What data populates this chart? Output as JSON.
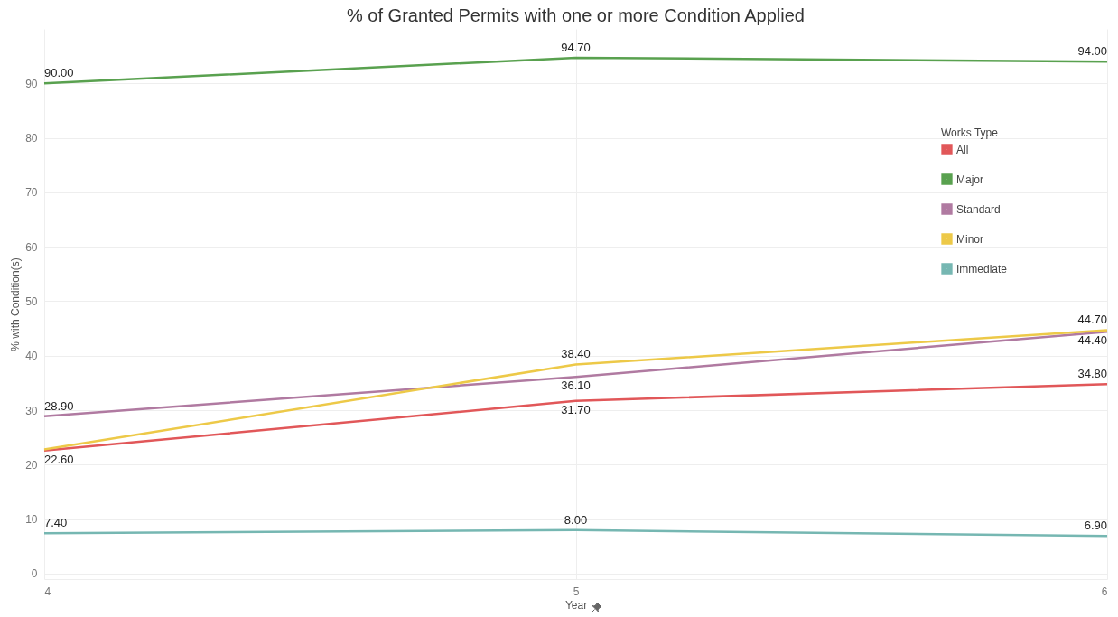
{
  "chart_data": {
    "type": "line",
    "title": "% of Granted Permits with one or more Condition Applied",
    "xlabel": "Year",
    "ylabel": "% with Condition(s)",
    "legend_title": "Works Type",
    "x": [
      4,
      5,
      6
    ],
    "xlim": [
      4,
      6
    ],
    "xticks": [
      4,
      5,
      6
    ],
    "ylim": [
      -1,
      100
    ],
    "yticks": [
      0,
      10,
      20,
      30,
      40,
      50,
      60,
      70,
      80,
      90
    ],
    "grid": true,
    "legend": "top right",
    "line_style": "solid",
    "series": [
      {
        "name": "All",
        "color": "#e15759",
        "values": [
          22.6,
          31.7,
          34.8
        ],
        "value_labels": [
          "22.60",
          "31.70",
          "34.80"
        ]
      },
      {
        "name": "Major",
        "color": "#59a14f",
        "values": [
          90.0,
          94.7,
          94.0
        ],
        "value_labels": [
          "90.00",
          "94.70",
          "94.00"
        ]
      },
      {
        "name": "Standard",
        "color": "#b07aa1",
        "values": [
          28.9,
          36.1,
          44.4
        ],
        "value_labels": [
          "28.90",
          "36.10",
          "44.40"
        ]
      },
      {
        "name": "Minor",
        "color": "#edc948",
        "values": [
          22.8,
          38.4,
          44.7
        ],
        "value_labels": [
          null,
          "38.40",
          "44.70"
        ]
      },
      {
        "name": "Immediate",
        "color": "#76b7b2",
        "values": [
          7.4,
          8.0,
          6.9
        ],
        "value_labels": [
          "7.40",
          "8.00",
          "6.90"
        ]
      }
    ]
  }
}
